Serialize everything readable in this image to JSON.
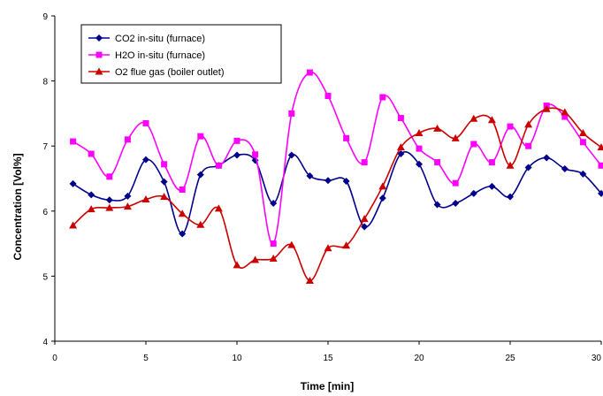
{
  "chart_data": {
    "type": "line",
    "title": "",
    "xlabel": "Time [min]",
    "ylabel": "Concentration [Vol%]",
    "xlim": [
      0,
      30
    ],
    "ylim": [
      4,
      9
    ],
    "xticks": [
      0,
      5,
      10,
      15,
      20,
      25,
      30
    ],
    "yticks": [
      4,
      5,
      6,
      7,
      8,
      9
    ],
    "grid": false,
    "legend_position": "top-left",
    "smooth": true,
    "x": [
      1,
      2,
      3,
      4,
      5,
      6,
      7,
      8,
      9,
      10,
      11,
      12,
      13,
      14,
      15,
      16,
      17,
      18,
      19,
      20,
      21,
      22,
      23,
      24,
      25,
      26,
      27,
      28,
      29,
      30
    ],
    "series": [
      {
        "name": "CO2 in-situ (furnace)",
        "color": "#00008B",
        "marker": "diamond",
        "values": [
          6.42,
          6.25,
          6.17,
          6.23,
          6.79,
          6.45,
          5.65,
          6.56,
          6.7,
          6.86,
          6.78,
          6.12,
          6.86,
          6.54,
          6.47,
          6.46,
          5.76,
          6.2,
          6.88,
          6.72,
          6.1,
          6.12,
          6.27,
          6.38,
          6.22,
          6.67,
          6.82,
          6.65,
          6.57,
          6.27
        ]
      },
      {
        "name": "H2O in-situ (furnace)",
        "color": "#FF00FF",
        "marker": "square",
        "values": [
          7.07,
          6.88,
          6.53,
          7.1,
          7.35,
          6.72,
          6.33,
          7.15,
          6.7,
          7.08,
          6.87,
          5.5,
          7.5,
          8.13,
          7.77,
          7.12,
          6.75,
          7.75,
          7.43,
          6.96,
          6.75,
          6.43,
          7.03,
          6.75,
          7.3,
          7.0,
          7.62,
          7.45,
          7.06,
          6.7
        ]
      },
      {
        "name": "O2 flue gas (boiler outlet)",
        "color": "#CC0000",
        "marker": "triangle",
        "values": [
          5.78,
          6.03,
          6.05,
          6.07,
          6.18,
          6.22,
          5.96,
          5.79,
          6.04,
          5.17,
          5.25,
          5.27,
          5.48,
          4.93,
          5.43,
          5.47,
          5.88,
          6.38,
          6.98,
          7.2,
          7.27,
          7.12,
          7.42,
          7.4,
          6.7,
          7.33,
          7.57,
          7.52,
          7.2,
          6.98
        ]
      }
    ]
  }
}
